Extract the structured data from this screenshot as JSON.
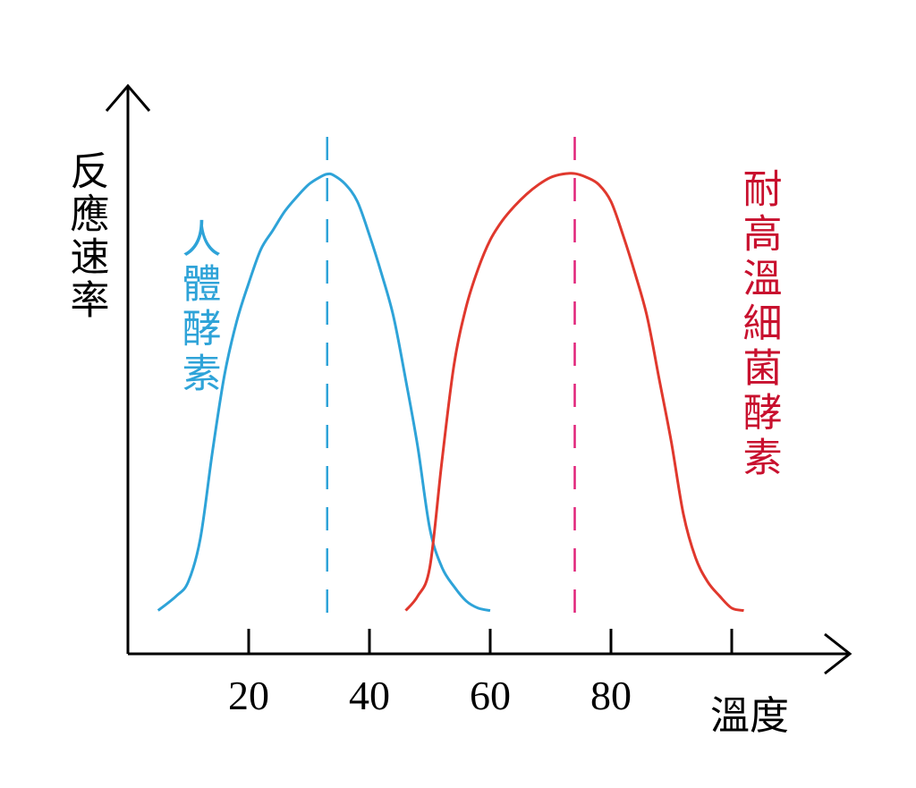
{
  "chart_data": {
    "type": "line",
    "title": "",
    "xlabel": "溫度",
    "ylabel": "反應速率",
    "xticks": [
      20,
      40,
      60,
      80
    ],
    "xlim": [
      0,
      120
    ],
    "ylim": [
      0,
      1
    ],
    "grid": false,
    "legend": "none",
    "colors": {
      "axis": "#000000",
      "human": "#2ea3d8",
      "human_marker": "#2ea3d8",
      "bacteria": "#e0382d",
      "bacteria_marker": "#e0237a",
      "bacteria_label": "#c8102e"
    },
    "series": [
      {
        "name": "人體酵素",
        "optimum": 33,
        "points": [
          [
            5,
            0.09
          ],
          [
            8,
            0.12
          ],
          [
            10,
            0.15
          ],
          [
            12,
            0.24
          ],
          [
            14,
            0.42
          ],
          [
            16,
            0.58
          ],
          [
            18,
            0.69
          ],
          [
            20,
            0.77
          ],
          [
            22,
            0.84
          ],
          [
            24,
            0.88
          ],
          [
            26,
            0.92
          ],
          [
            28,
            0.95
          ],
          [
            30,
            0.976
          ],
          [
            32,
            0.992
          ],
          [
            33,
            0.997
          ],
          [
            34,
            0.995
          ],
          [
            36,
            0.976
          ],
          [
            38,
            0.94
          ],
          [
            40,
            0.87
          ],
          [
            42,
            0.79
          ],
          [
            44,
            0.7
          ],
          [
            46,
            0.57
          ],
          [
            48,
            0.43
          ],
          [
            50,
            0.26
          ],
          [
            52,
            0.18
          ],
          [
            54,
            0.14
          ],
          [
            56,
            0.11
          ],
          [
            58,
            0.095
          ],
          [
            60,
            0.09
          ]
        ]
      },
      {
        "name": "耐高溫細菌酵素",
        "optimum": 74,
        "points": [
          [
            46,
            0.09
          ],
          [
            48,
            0.12
          ],
          [
            50,
            0.18
          ],
          [
            52,
            0.4
          ],
          [
            54,
            0.6
          ],
          [
            56,
            0.72
          ],
          [
            58,
            0.8
          ],
          [
            60,
            0.86
          ],
          [
            62,
            0.9
          ],
          [
            64,
            0.93
          ],
          [
            66,
            0.955
          ],
          [
            68,
            0.975
          ],
          [
            70,
            0.99
          ],
          [
            72,
            0.997
          ],
          [
            74,
            0.998
          ],
          [
            76,
            0.99
          ],
          [
            78,
            0.975
          ],
          [
            80,
            0.94
          ],
          [
            82,
            0.87
          ],
          [
            84,
            0.79
          ],
          [
            86,
            0.7
          ],
          [
            88,
            0.57
          ],
          [
            90,
            0.44
          ],
          [
            92,
            0.29
          ],
          [
            94,
            0.2
          ],
          [
            96,
            0.15
          ],
          [
            98,
            0.12
          ],
          [
            100,
            0.095
          ],
          [
            102,
            0.09
          ]
        ]
      }
    ]
  }
}
